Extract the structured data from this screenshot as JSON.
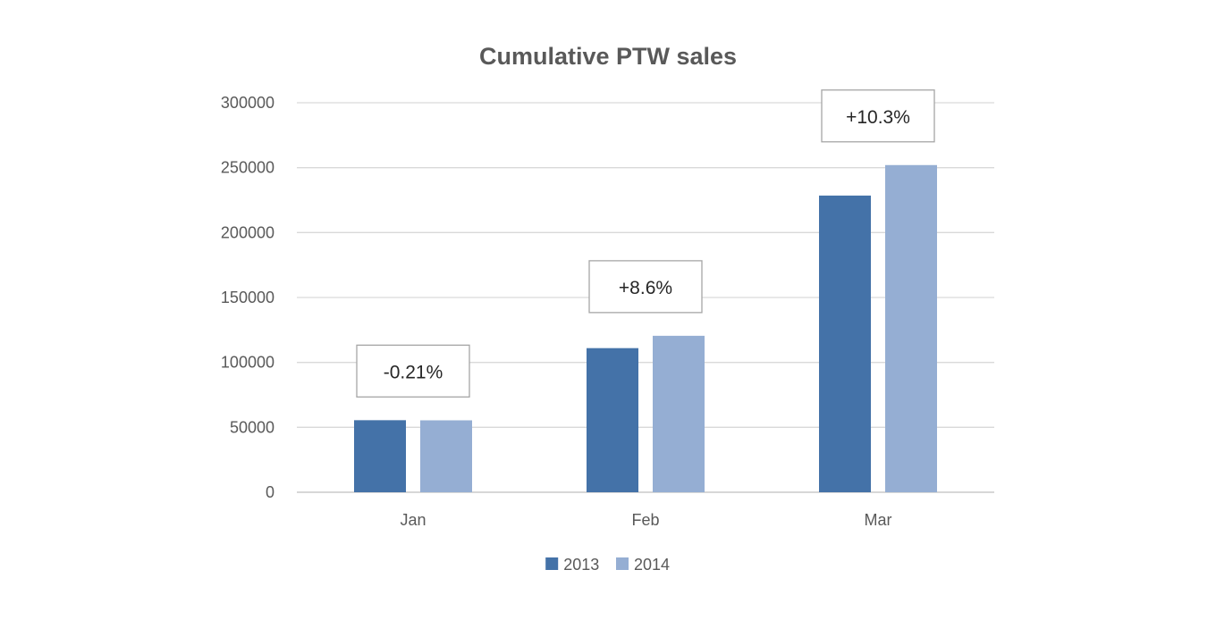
{
  "chart_data": {
    "type": "bar",
    "title": "Cumulative PTW sales",
    "xlabel": "",
    "ylabel": "",
    "categories": [
      "Jan",
      "Feb",
      "Mar"
    ],
    "series": [
      {
        "name": "2013",
        "values": [
          55500,
          111000,
          228500
        ],
        "color": "#4472a8"
      },
      {
        "name": "2014",
        "values": [
          55400,
          120500,
          252000
        ],
        "color": "#95aed3"
      }
    ],
    "annotations": [
      "-0.21%",
      "+8.6%",
      "+10.3%"
    ],
    "ylim": [
      0,
      300000
    ],
    "yticks": [
      "0",
      "50000",
      "100000",
      "150000",
      "200000",
      "250000",
      "300000"
    ],
    "grid": true,
    "legend_position": "bottom"
  }
}
